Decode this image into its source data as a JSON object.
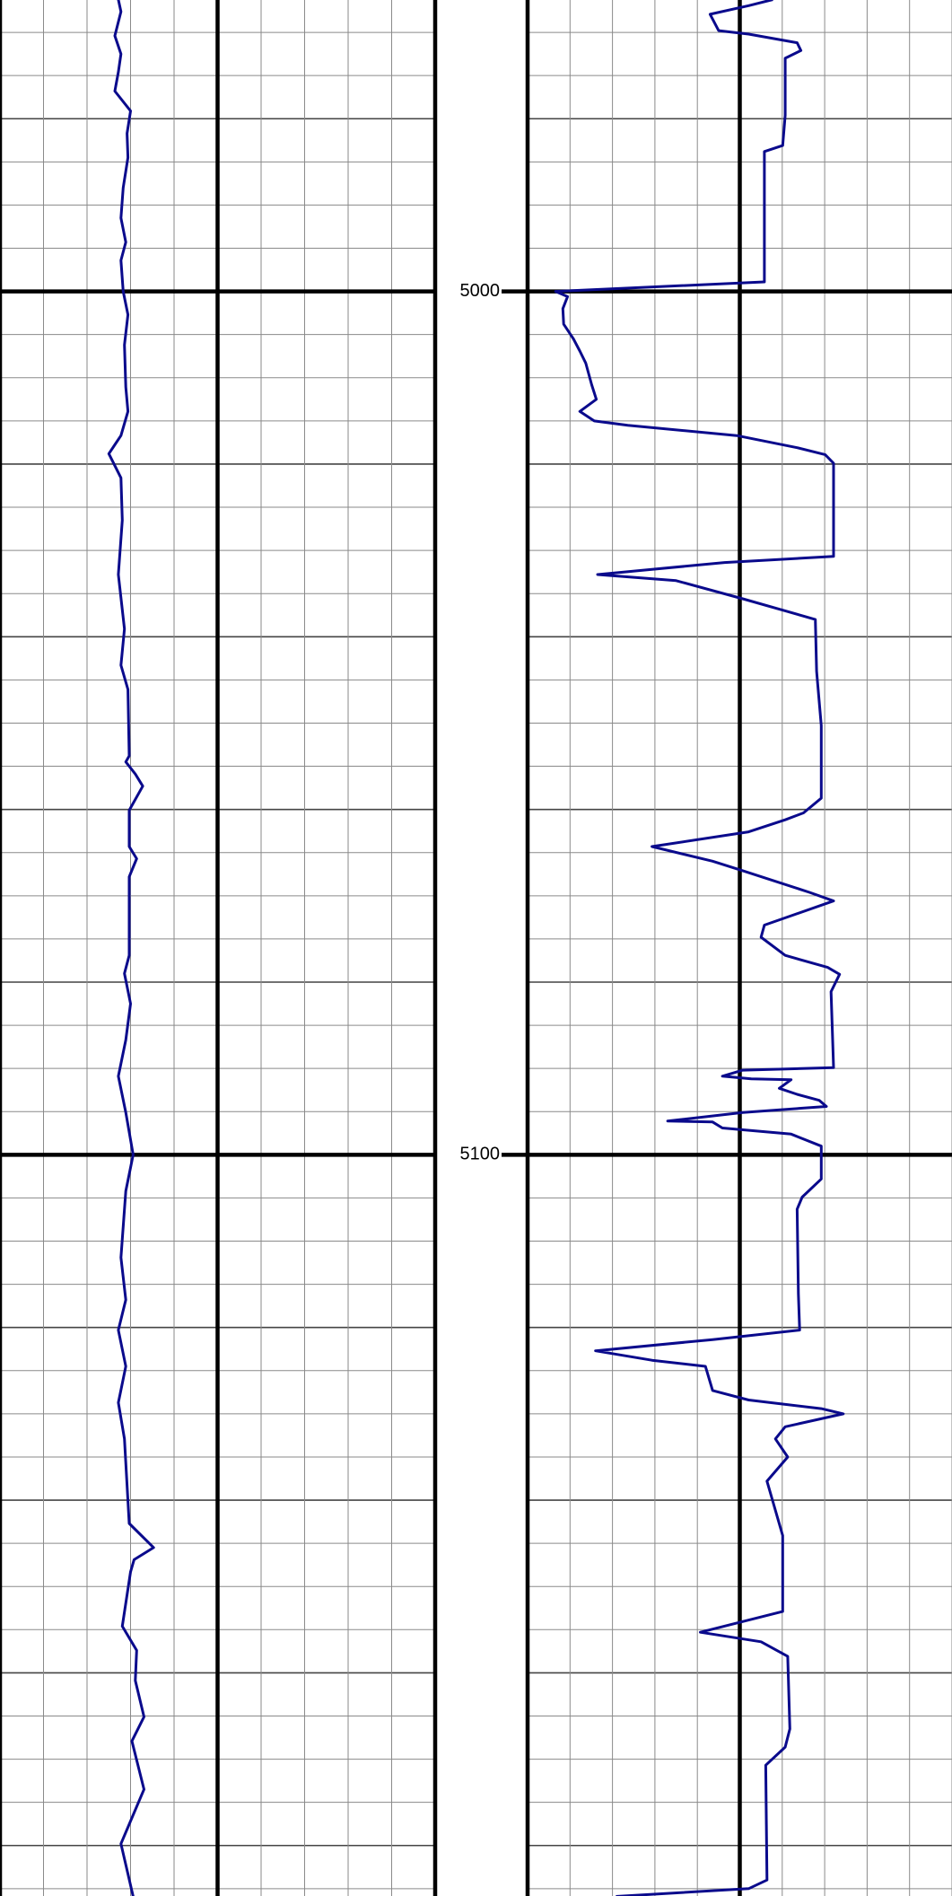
{
  "chart_data": {
    "type": "well-log",
    "ylim": [
      4966.25,
      5185.85
    ],
    "yticks": [
      5000,
      5100
    ],
    "minor_yticks": [
      4970,
      4975,
      4980,
      4985,
      4990,
      4995,
      5000,
      5005,
      5010,
      5015,
      5020,
      5025,
      5030,
      5035,
      5040,
      5045,
      5050,
      5055,
      5060,
      5065,
      5070,
      5075,
      5080,
      5085,
      5090,
      5095,
      5100,
      5105,
      5110,
      5115,
      5120,
      5125,
      5130,
      5135,
      5140,
      5145,
      5150,
      5155,
      5160,
      5165,
      5170,
      5175,
      5180,
      5185
    ],
    "grid": true,
    "tracks": [
      {
        "xlim": [
          0,
          10
        ],
        "xticks": [
          0,
          1,
          2,
          3,
          4,
          5,
          6,
          7,
          8,
          9,
          10
        ],
        "series": [
          {
            "color": "#0a0a8c",
            "depth": [
              4966.2,
              4967.6,
              4970.4,
              4972.5,
              4974.6,
              4976.8,
              4979.1,
              4981.7,
              4984.5,
              4988.0,
              4991.5,
              4994.3,
              4996.4,
              5000.0,
              5002.7,
              5006.2,
              5011.1,
              5013.9,
              5016.7,
              5018.8,
              5021.6,
              5026.5,
              5032.8,
              5039.1,
              5043.3,
              5046.1,
              5053.8,
              5054.5,
              5055.9,
              5057.3,
              5060.1,
              5064.3,
              5065.7,
              5067.8,
              5076.9,
              5079.0,
              5082.5,
              5086.7,
              5090.9,
              5095.1,
              5100.0,
              5104.2,
              5111.9,
              5116.8,
              5120.3,
              5124.5,
              5128.7,
              5132.9,
              5142.7,
              5145.5,
              5146.9,
              5148.3,
              5154.6,
              5157.4,
              5160.9,
              5165.1,
              5167.9,
              5173.5,
              5179.8,
              5185.9
            ],
            "values": [
              2.72,
              2.78,
              2.64,
              2.78,
              2.72,
              2.64,
              3.0,
              2.92,
              2.94,
              2.83,
              2.78,
              2.89,
              2.78,
              2.83,
              2.94,
              2.86,
              2.89,
              2.94,
              2.78,
              2.5,
              2.78,
              2.81,
              2.72,
              2.86,
              2.78,
              2.94,
              2.97,
              2.89,
              3.11,
              3.28,
              2.97,
              2.97,
              3.14,
              2.97,
              2.97,
              2.86,
              3.0,
              2.89,
              2.72,
              2.89,
              3.06,
              2.89,
              2.78,
              2.89,
              2.72,
              2.89,
              2.72,
              2.86,
              2.97,
              3.53,
              3.08,
              3.0,
              2.81,
              3.14,
              3.11,
              3.31,
              3.03,
              3.31,
              2.78,
              3.06
            ]
          }
        ]
      },
      {
        "xlim": [
          0,
          10
        ],
        "xticks": [
          0,
          1,
          2,
          3,
          4,
          5,
          6,
          7,
          8,
          9,
          10
        ],
        "series": [
          {
            "color": "#0a0a8c",
            "depth": [
              4966.2,
              4966.9,
              4967.9,
              4969.8,
              4970.2,
              4971.2,
              4972.1,
              4973.0,
              4979.6,
              4983.1,
              4983.8,
              4998.9,
              5000.0,
              5000.6,
              5002.0,
              5003.8,
              5005.5,
              5006.9,
              5008.3,
              5010.8,
              5012.5,
              5013.9,
              5015.0,
              5015.5,
              5016.7,
              5018.1,
              5018.9,
              5019.9,
              5030.7,
              5031.4,
              5032.8,
              5033.5,
              5035.6,
              5037.0,
              5038.0,
              5044.0,
              5050.3,
              5058.7,
              5060.4,
              5061.2,
              5062.6,
              5064.3,
              5066.0,
              5067.1,
              5069.6,
              5070.6,
              5073.4,
              5074.8,
              5076.9,
              5078.3,
              5079.1,
              5081.1,
              5089.9,
              5090.2,
              5090.9,
              5091.2,
              5091.3,
              5092.3,
              5093.0,
              5093.7,
              5094.4,
              5095.1,
              5096.1,
              5096.2,
              5096.9,
              5097.6,
              5099.0,
              5102.8,
              5104.9,
              5106.3,
              5116.1,
              5120.3,
              5121.4,
              5122.7,
              5123.8,
              5124.5,
              5127.3,
              5128.4,
              5129.4,
              5130.0,
              5131.5,
              5132.9,
              5135.0,
              5137.8,
              5144.1,
              5152.9,
              5155.3,
              5156.4,
              5158.1,
              5166.5,
              5168.6,
              5170.7,
              5184.0,
              5185.0,
              5185.9
            ],
            "values": [
              5.78,
              5.21,
              4.3,
              4.5,
              5.21,
              6.35,
              6.44,
              6.07,
              6.07,
              6.01,
              5.58,
              5.58,
              0.66,
              0.94,
              0.83,
              0.85,
              1.08,
              1.23,
              1.37,
              1.51,
              1.62,
              1.23,
              1.57,
              2.36,
              4.93,
              6.35,
              7.01,
              7.21,
              7.21,
              4.64,
              1.65,
              3.5,
              5.07,
              6.07,
              6.78,
              6.81,
              6.92,
              6.92,
              6.5,
              6.07,
              5.21,
              2.93,
              4.36,
              5.07,
              6.64,
              7.21,
              5.58,
              5.5,
              6.07,
              7.07,
              7.35,
              7.15,
              7.21,
              5.07,
              4.59,
              5.27,
              6.21,
              5.93,
              6.35,
              6.87,
              7.04,
              5.07,
              3.3,
              4.36,
              4.59,
              6.21,
              6.92,
              6.92,
              6.47,
              6.35,
              6.38,
              6.41,
              4.36,
              1.6,
              2.93,
              4.19,
              4.36,
              5.21,
              6.92,
              7.44,
              6.07,
              5.84,
              6.13,
              5.64,
              6.01,
              6.01,
              4.07,
              5.5,
              6.13,
              6.18,
              6.07,
              5.61,
              5.64,
              5.21,
              2.08
            ]
          }
        ]
      }
    ]
  }
}
